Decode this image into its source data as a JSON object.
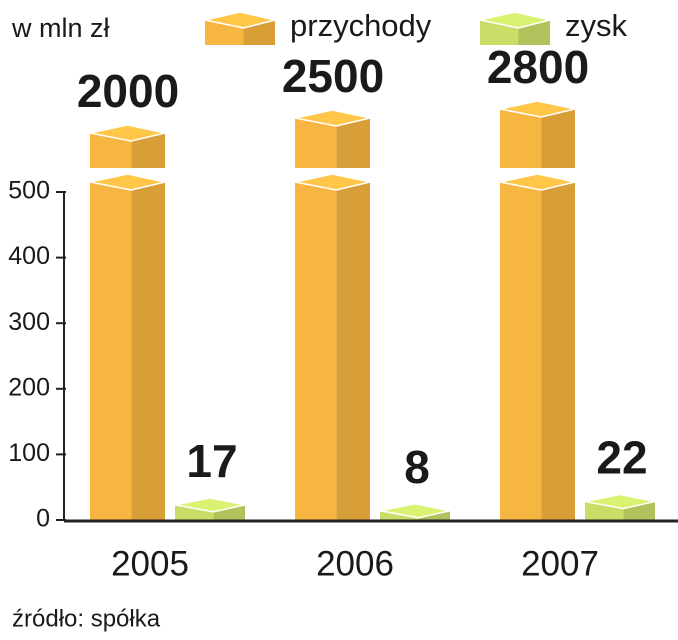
{
  "chart_data": {
    "type": "bar3d-broken",
    "subtitle": "w mln zł",
    "categories": [
      "2005",
      "2006",
      "2007"
    ],
    "series": [
      {
        "name": "przychody",
        "color": "#f0b13f",
        "values": [
          2000,
          2500,
          2800
        ]
      },
      {
        "name": "zysk",
        "color": "#c3d865",
        "values": [
          17,
          8,
          22
        ]
      }
    ],
    "ylim": [
      0,
      500
    ],
    "yticks": [
      0,
      100,
      200,
      300,
      400,
      500
    ],
    "source": "źródło: spółka"
  }
}
